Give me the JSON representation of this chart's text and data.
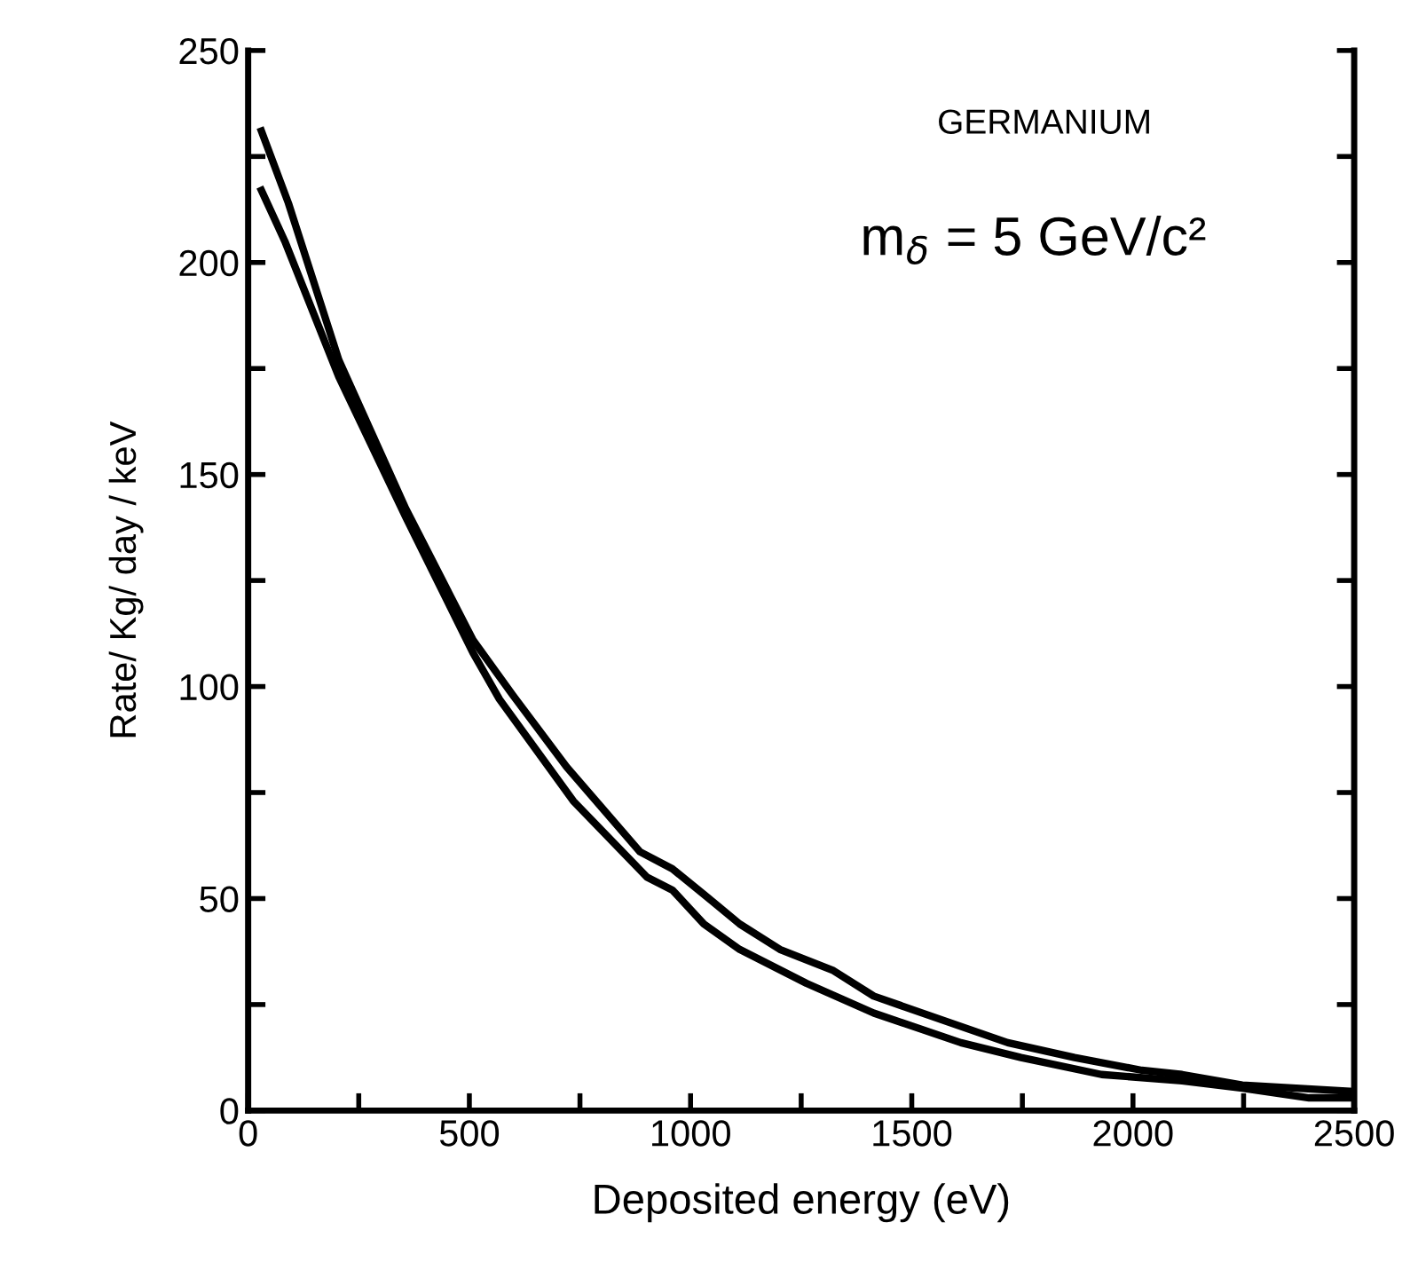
{
  "chart_data": {
    "type": "line",
    "xlabel": "Deposited energy (eV)",
    "ylabel": "Rate/ Kg/ day / keV",
    "annotations": [
      "GERMANIUM",
      "m$_{δ}$ = 5 GeV/c²"
    ],
    "series": [
      {
        "color": "#000000",
        "x": [
          30,
          91,
          205,
          356,
          508,
          598,
          720,
          886,
          959,
          1030,
          1111,
          1202,
          1323,
          1414,
          1565,
          1717,
          1868,
          2020,
          2111,
          2247,
          2497
        ],
        "values": [
          231,
          214,
          177,
          142,
          111,
          98,
          81,
          61,
          57,
          51,
          44,
          38,
          33,
          27,
          21.5,
          16,
          12.5,
          9.5,
          8.5,
          6,
          4.5
        ]
      },
      {
        "color": "#000000",
        "x": [
          30,
          83,
          205,
          356,
          508,
          568,
          735,
          902,
          959,
          1030,
          1111,
          1262,
          1414,
          1611,
          1747,
          1929,
          2111,
          2247,
          2398,
          2497
        ],
        "values": [
          217,
          205,
          173,
          140,
          108,
          97,
          73,
          55,
          52,
          44,
          38,
          30,
          23,
          16,
          12.5,
          8.5,
          7,
          5.3,
          3,
          3
        ]
      }
    ],
    "xlim": [
      0,
      2500
    ],
    "ylim": [
      0,
      250
    ],
    "xticks": [
      0,
      {
        "value": 250,
        "label": null
      },
      500,
      {
        "value": 750,
        "label": null
      },
      1000,
      {
        "value": 1250,
        "label": null
      },
      1500,
      {
        "value": 1750,
        "label": null
      },
      2000,
      {
        "value": 2250,
        "label": null
      },
      2500
    ],
    "yticks": [
      0,
      {
        "value": 25,
        "label": null
      },
      50,
      {
        "value": 75,
        "label": null
      },
      100,
      {
        "value": 125,
        "label": null
      },
      150,
      {
        "value": 175,
        "label": null
      },
      200,
      {
        "value": 225,
        "label": null
      },
      250
    ],
    "grid": false,
    "legend": false,
    "marker": "none",
    "line_style": "solid"
  }
}
